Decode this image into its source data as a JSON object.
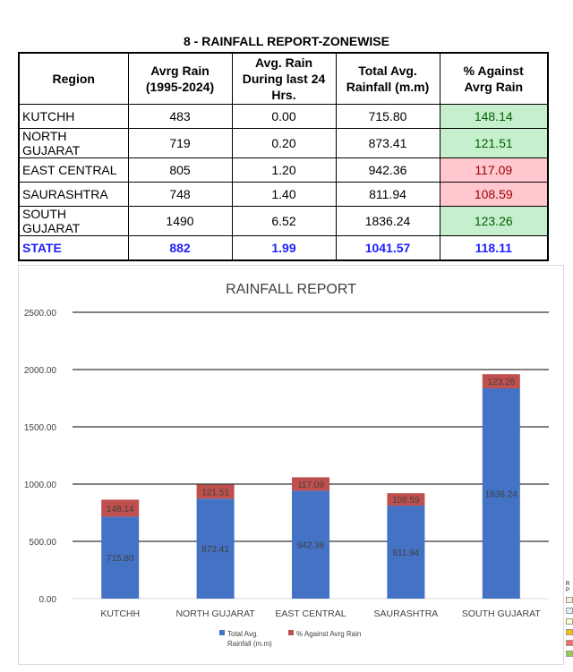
{
  "report": {
    "title": "8 - RAINFALL REPORT-ZONEWISE",
    "headers": {
      "region": "Region",
      "avg_rain_1": "Avrg Rain",
      "avg_rain_2": "(1995-2024)",
      "last24_1": "Avg. Rain",
      "last24_2": "During last 24",
      "last24_3": "Hrs.",
      "total_1": "Total Avg.",
      "total_2": "Rainfall (m.m)",
      "pct_1": "% Against",
      "pct_2": "Avrg Rain"
    },
    "rows": [
      {
        "region": "KUTCHH",
        "avg": "483",
        "last24": "0.00",
        "total": "715.80",
        "pct": "148.14",
        "status": "good"
      },
      {
        "region": "NORTH GUJARAT",
        "avg": "719",
        "last24": "0.20",
        "total": "873.41",
        "pct": "121.51",
        "status": "good"
      },
      {
        "region": "EAST CENTRAL",
        "avg": "805",
        "last24": "1.20",
        "total": "942.36",
        "pct": "117.09",
        "status": "bad"
      },
      {
        "region": "SAURASHTRA",
        "avg": "748",
        "last24": "1.40",
        "total": "811.94",
        "pct": "108.59",
        "status": "bad"
      },
      {
        "region": "SOUTH GUJARAT",
        "avg": "1490",
        "last24": "6.52",
        "total": "1836.24",
        "pct": "123.26",
        "status": "good"
      }
    ],
    "state": {
      "region": "STATE",
      "avg": "882",
      "last24": "1.99",
      "total": "1041.57",
      "pct": "118.11"
    },
    "colors": {
      "good_bg": "#c6efce",
      "good_text": "#006100",
      "bad_bg": "#ffc7ce",
      "bad_text": "#9c0006",
      "state_text": "#1f1fff"
    }
  },
  "chart_data": {
    "type": "bar",
    "stacked": true,
    "title": "RAINFALL REPORT",
    "categories": [
      "KUTCHH",
      "NORTH GUJARAT",
      "EAST CENTRAL",
      "SAURASHTRA",
      "SOUTH GUJARAT"
    ],
    "series": [
      {
        "name": "Total Avg. Rainfall (m.m)",
        "values": [
          715.8,
          873.41,
          942.36,
          811.94,
          1836.24
        ],
        "labels": [
          "715.80",
          "873.41",
          "942.36",
          "811.94",
          "1836.24"
        ],
        "color": "#4472c4"
      },
      {
        "name": "% Against Avrg Rain",
        "values": [
          148.14,
          121.51,
          117.09,
          108.59,
          123.26
        ],
        "labels": [
          "148.14",
          "121.51",
          "117.09",
          "108.59",
          "123.26"
        ],
        "color": "#c0504d"
      }
    ],
    "ylim": [
      0,
      2500
    ],
    "yticks": [
      "0.00",
      "500.00",
      "1000.00",
      "1500.00",
      "2000.00",
      "2500.00"
    ],
    "ytick_values": [
      0,
      500,
      1000,
      1500,
      2000,
      2500
    ],
    "grid": true,
    "legend": "bottom",
    "legend_lines": [
      [
        "Total Avg.",
        "Rainfall (m.m)"
      ],
      [
        "% Against Avrg Rain"
      ]
    ],
    "xlabel": "",
    "ylabel": ""
  },
  "side_fragment": {
    "line1": "R",
    "line2": "P"
  }
}
